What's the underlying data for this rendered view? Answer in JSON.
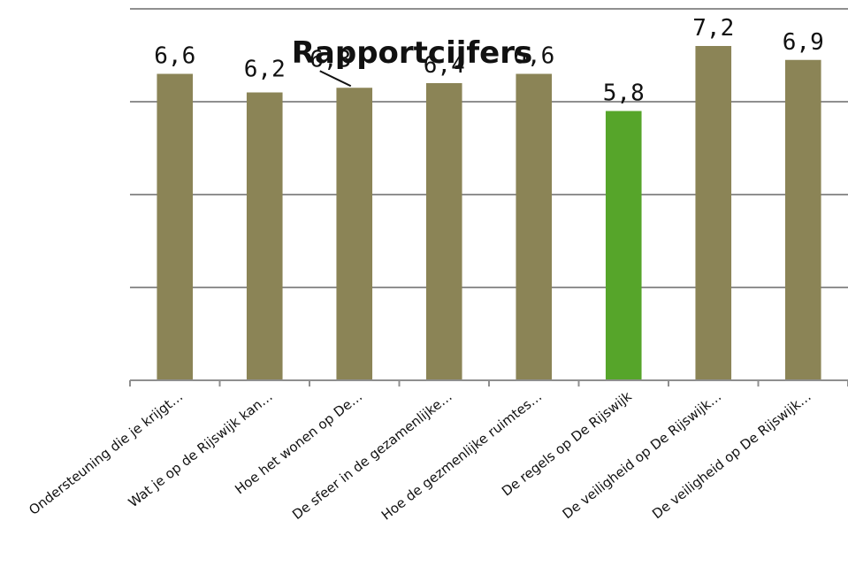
{
  "chart_data": {
    "type": "bar",
    "title": "Rapportcijfers",
    "xlabel": "",
    "ylabel": "",
    "ylim": [
      0,
      8
    ],
    "grid": true,
    "legend": "none",
    "categories": [
      "Ondersteuning die je krijgt…",
      "Wat je op de Rijswijk kan…",
      "Hoe het wonen op De…",
      "De sfeer in de gezamenlijke…",
      "Hoe de gezmenlijke ruimtes…",
      "De regels op De Rijswijk",
      "De veiligheid op De Rijswijk…",
      "De veiligheid op De Rijswijk…"
    ],
    "values": [
      6.6,
      6.2,
      6.3,
      6.4,
      6.6,
      5.8,
      7.2,
      6.9
    ],
    "value_labels": [
      "6,6",
      "6,2",
      "6,3",
      "6,4",
      "6,6",
      "5,8",
      "7,2",
      "6,9"
    ],
    "bar_colors": [
      "#8b8456",
      "#8b8456",
      "#8b8456",
      "#8b8456",
      "#8b8456",
      "#56a52a",
      "#8b8456",
      "#8b8456"
    ]
  }
}
